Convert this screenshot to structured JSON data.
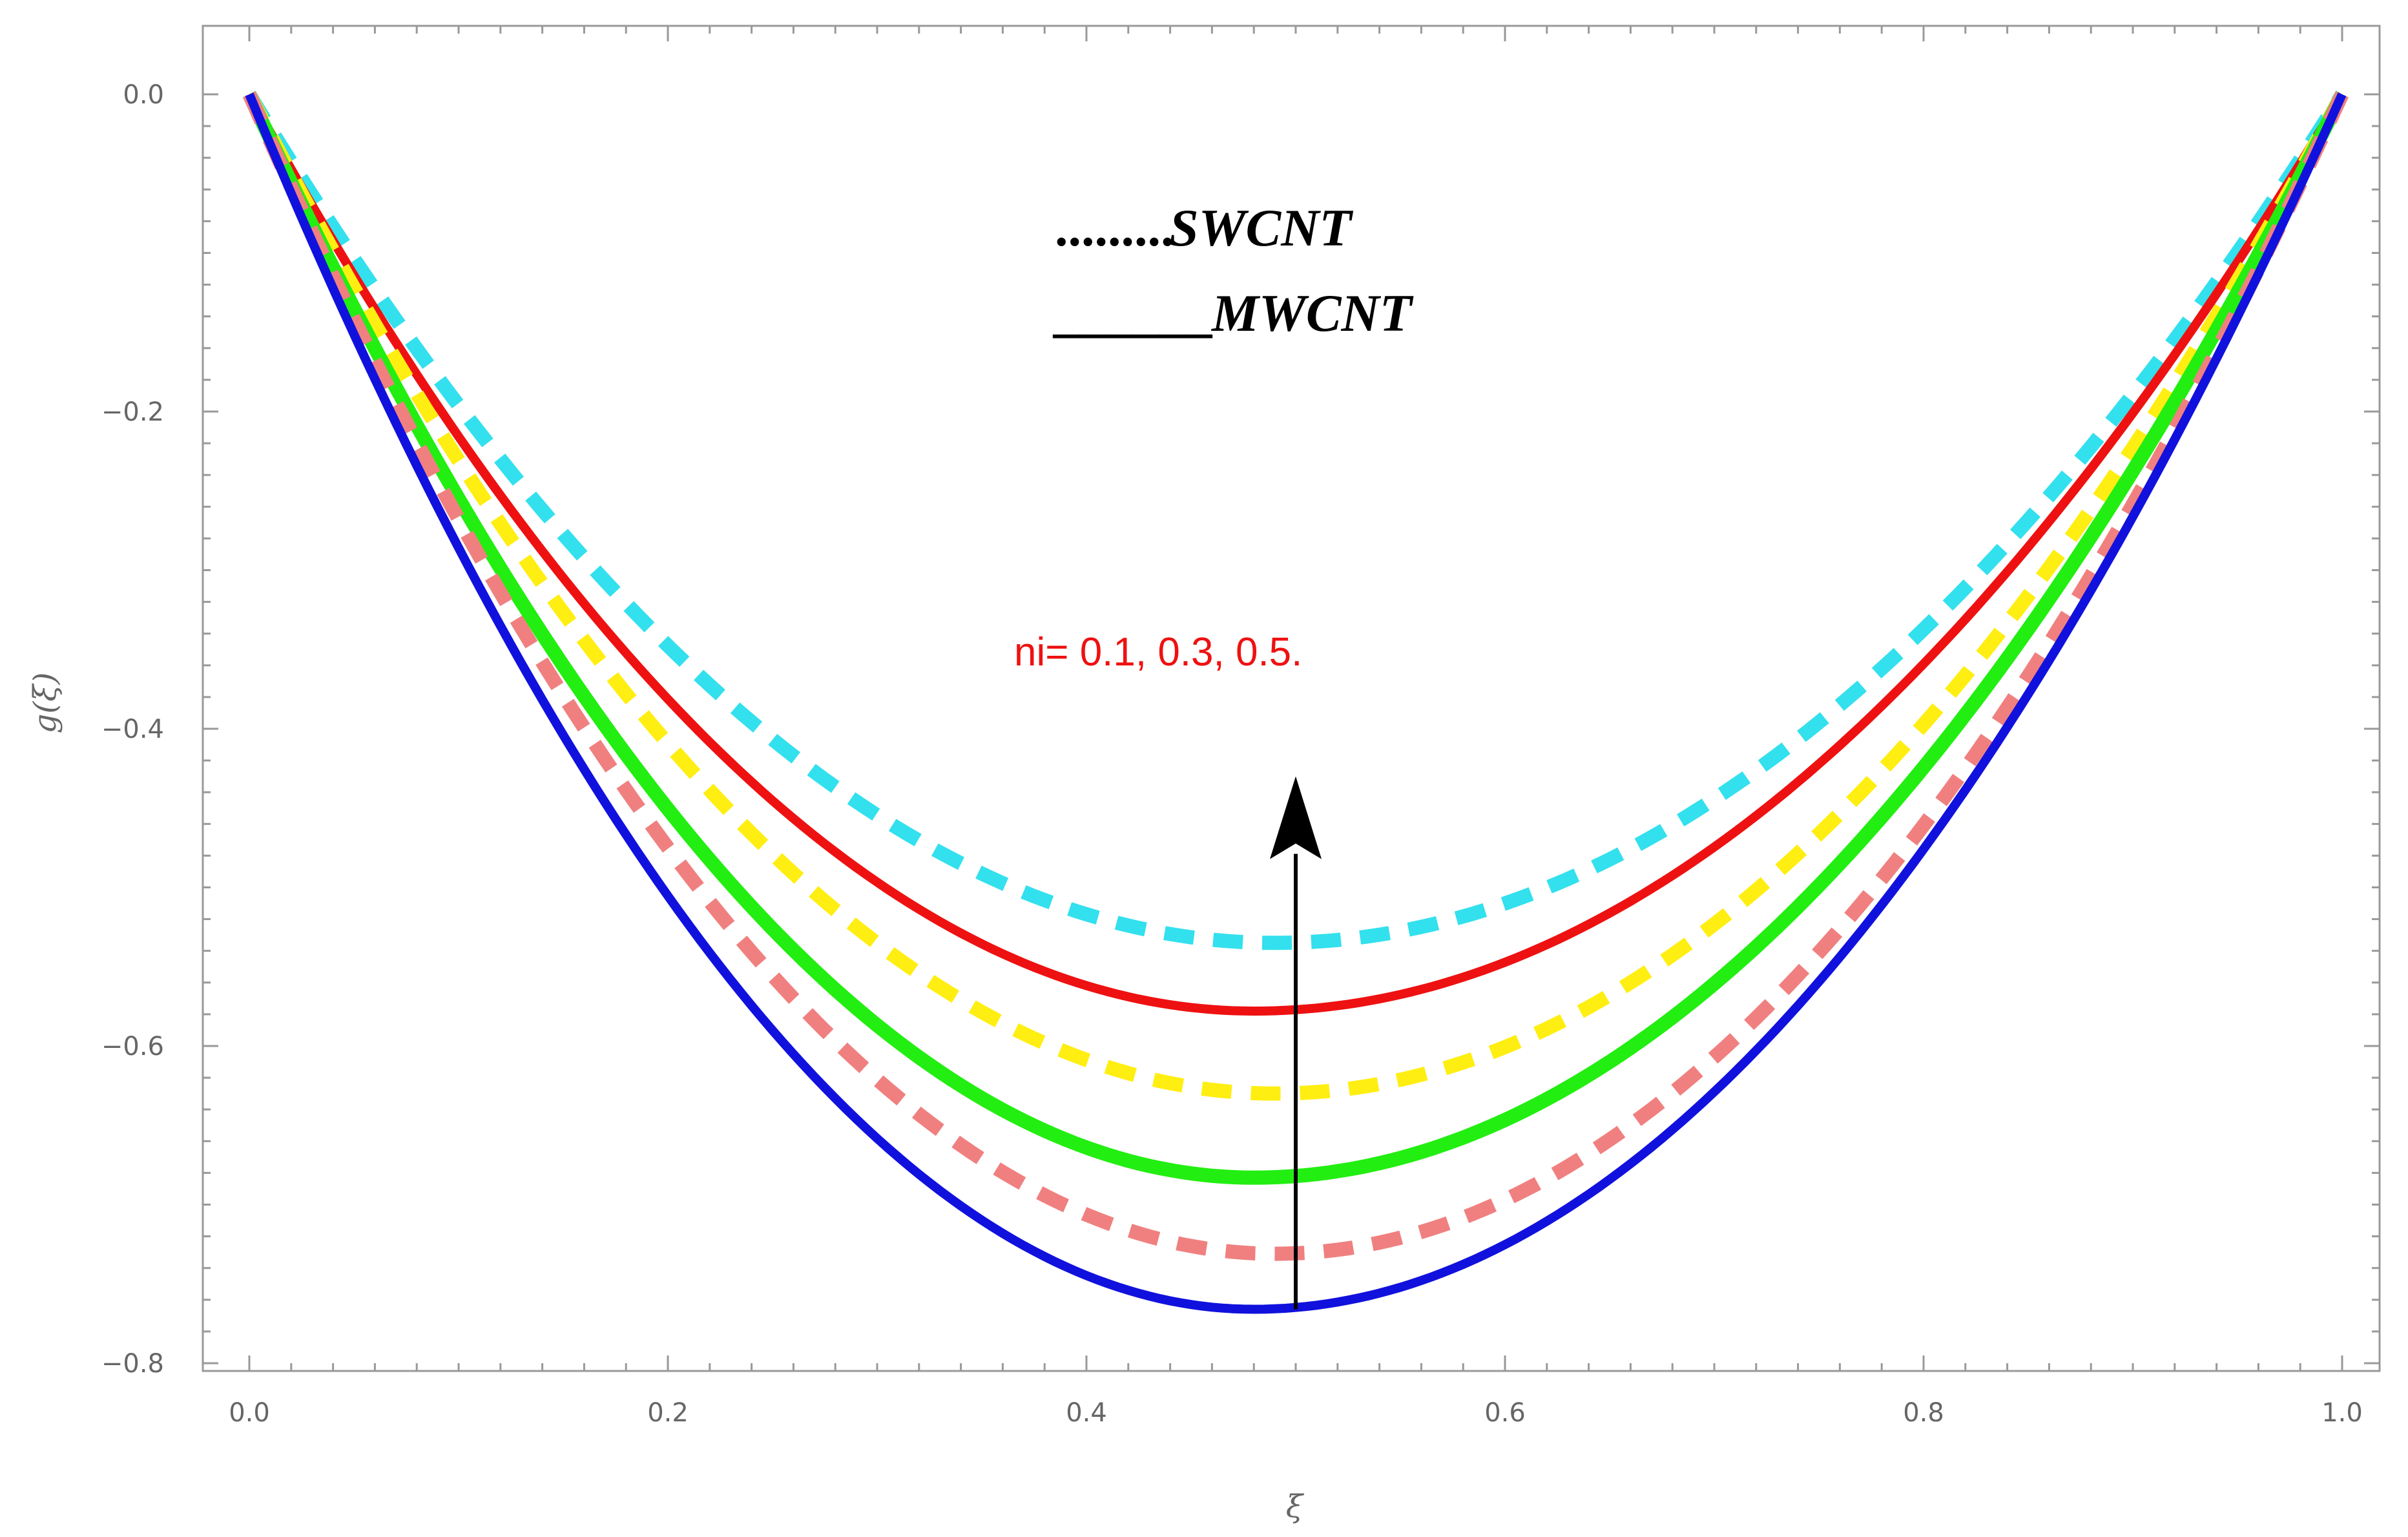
{
  "chart_data": {
    "type": "line",
    "title": "",
    "xlabel": "ξ",
    "ylabel": "g(ξ)",
    "xlim": [
      0.0,
      1.0
    ],
    "ylim": [
      -0.8,
      0.0
    ],
    "x_ticks": [
      "0.0",
      "0.2",
      "0.4",
      "0.6",
      "0.8",
      "1.0"
    ],
    "y_ticks": [
      "0.0",
      "−0.2",
      "−0.4",
      "−0.6",
      "−0.8"
    ],
    "series": [
      {
        "name": "SWCNT ni=0.5",
        "style": "dashed",
        "color": "#33e0ee",
        "min_x": 0.49,
        "min_y": -0.535
      },
      {
        "name": "MWCNT ni=0.5",
        "style": "solid",
        "color": "#ee1111",
        "min_x": 0.48,
        "min_y": -0.578
      },
      {
        "name": "SWCNT ni=0.3",
        "style": "dashed",
        "color": "#ffee11",
        "min_x": 0.49,
        "min_y": -0.63
      },
      {
        "name": "MWCNT ni=0.3",
        "style": "solid",
        "color": "#22ee11",
        "min_x": 0.48,
        "min_y": -0.683
      },
      {
        "name": "SWCNT ni=0.1",
        "style": "dashed",
        "color": "#f08080",
        "min_x": 0.49,
        "min_y": -0.731
      },
      {
        "name": "MWCNT ni=0.1",
        "style": "solid",
        "color": "#1111dd",
        "min_x": 0.48,
        "min_y": -0.766
      }
    ],
    "legend": [
      {
        "marker": ".........",
        "label": "SWCNT"
      },
      {
        "marker": "______",
        "label": "MWCNT"
      }
    ],
    "annotation": {
      "text": "ni= 0.1, 0.3, 0.5.",
      "color": "#ee1111",
      "arrow_x": 0.5,
      "arrow_from_y": -0.766,
      "arrow_to_y": -0.43
    }
  }
}
